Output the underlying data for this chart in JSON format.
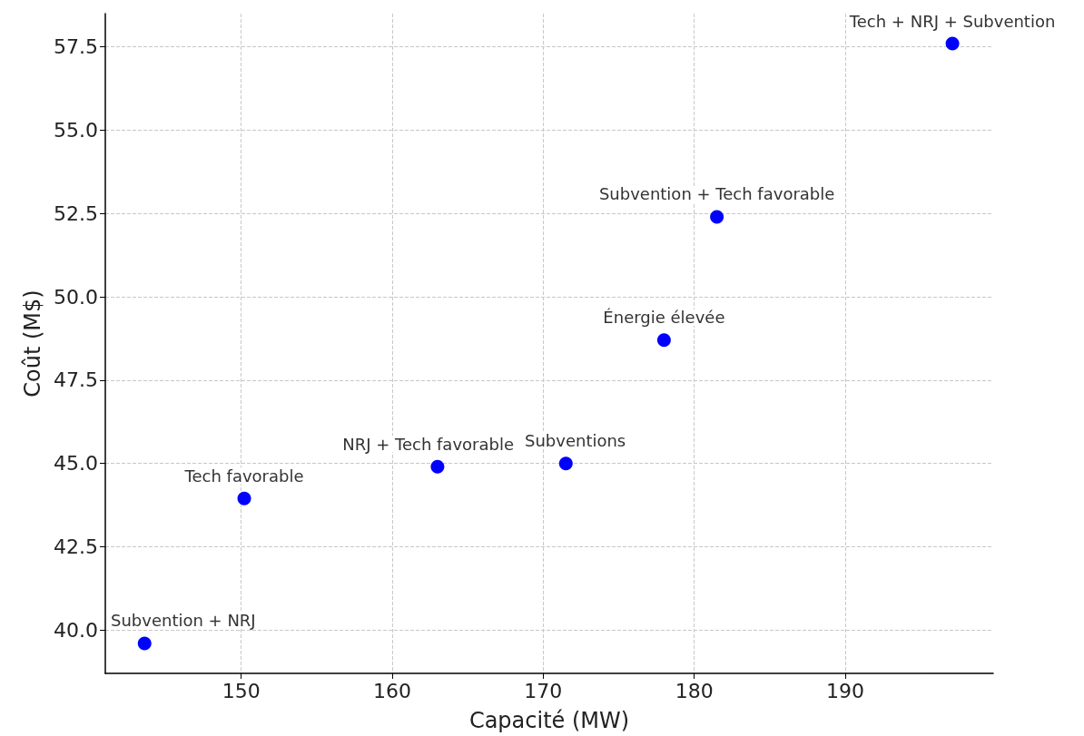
{
  "chart_data": {
    "type": "scatter",
    "xlabel": "Capacité (MW)",
    "ylabel": "Coût (M$)",
    "x": [
      143.6,
      150.2,
      163.0,
      171.5,
      178.0,
      181.5,
      197.1
    ],
    "values": [
      39.6,
      43.95,
      44.9,
      45.0,
      48.7,
      52.4,
      57.6
    ],
    "color": "#0000ff",
    "marker": "circle",
    "xlim": [
      141,
      199.8
    ],
    "xticks": [
      150,
      160,
      170,
      180,
      190
    ],
    "ylim": [
      38.7,
      58.5
    ],
    "yticks": [
      {
        "value": 40,
        "label": "40.0"
      },
      {
        "value": 42.5,
        "label": "42.5"
      },
      {
        "value": 45,
        "label": "45.0"
      },
      {
        "value": 47.5,
        "label": "47.5"
      },
      {
        "value": 50,
        "label": "50.0"
      },
      {
        "value": 52.5,
        "label": "52.5"
      },
      {
        "value": 55,
        "label": "55.0"
      },
      {
        "value": 57.5,
        "label": "57.5"
      }
    ],
    "grid": true,
    "annotations": [
      {
        "text": "Subvention + NRJ",
        "x": 143.6,
        "y": 39.6
      },
      {
        "text": "Tech favorable",
        "x": 150.2,
        "y": 43.95
      },
      {
        "text": "NRJ + Tech favorable",
        "x": 163.0,
        "y": 44.9
      },
      {
        "text": "Subventions",
        "x": 171.5,
        "y": 45.0
      },
      {
        "text": "Énergie élevée",
        "x": 178.0,
        "y": 48.7
      },
      {
        "text": "Subvention + Tech favorable",
        "x": 181.5,
        "y": 52.4
      },
      {
        "text": "Tech + NRJ + Subvention",
        "x": 197.1,
        "y": 57.6
      }
    ]
  }
}
